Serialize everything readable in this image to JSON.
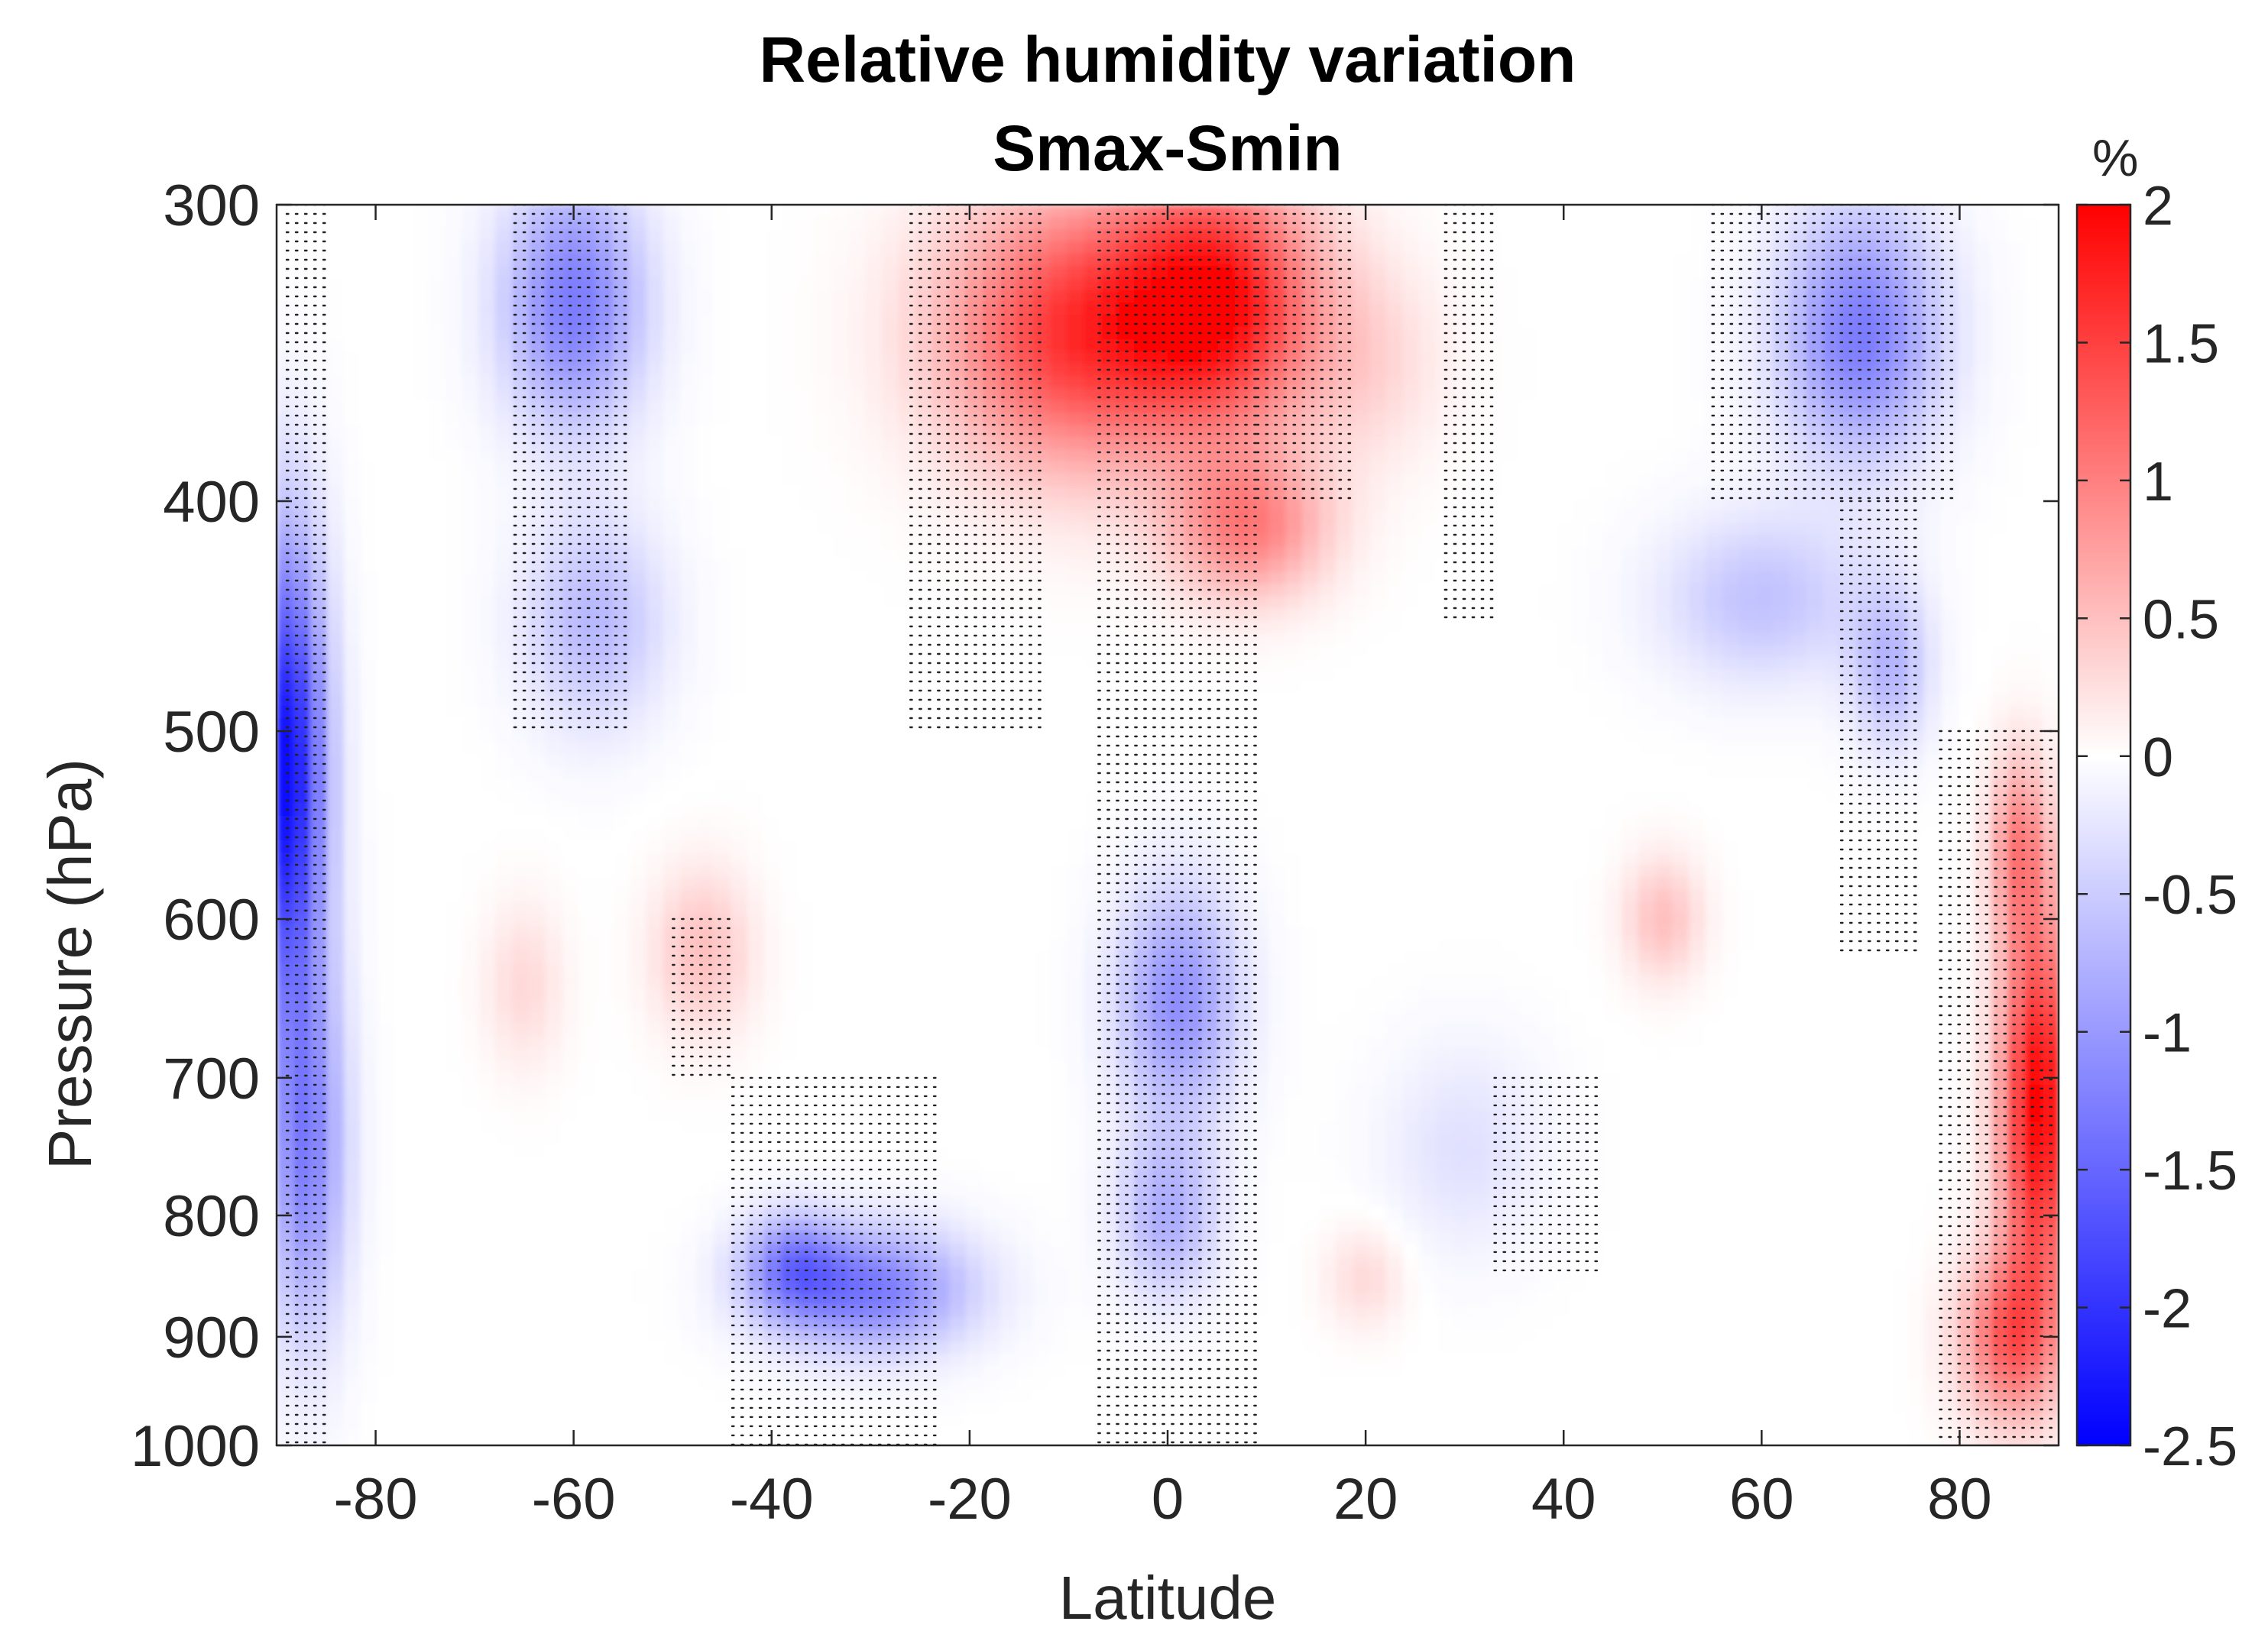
{
  "chart_data": {
    "type": "heatmap",
    "title": "Relative humidity variation",
    "subtitle": "Smax-Smin",
    "xlabel": "Latitude",
    "ylabel": "Pressure (hPa)",
    "xlim": [
      -90,
      90
    ],
    "ylim": [
      1000,
      300
    ],
    "y_scale": "log",
    "x_ticks": [
      -80,
      -60,
      -40,
      -20,
      0,
      20,
      40,
      60,
      80
    ],
    "y_ticks": [
      300,
      400,
      500,
      600,
      700,
      800,
      900,
      1000
    ],
    "colorbar": {
      "label": "%",
      "limits": [
        -2.5,
        2
      ],
      "ticks": [
        2,
        1.5,
        1,
        0.5,
        0,
        -0.5,
        -1,
        -1.5,
        -2,
        -2.5
      ],
      "tick_labels": [
        "2",
        "1.5",
        "1",
        "0.5",
        "0",
        "-0.5",
        "-1",
        "-1.5",
        "-2",
        "-2.5"
      ],
      "colors": {
        "low": "#0000ff",
        "mid": "#ffffff",
        "high": "#ff0000"
      }
    },
    "features": [
      {
        "lat": -89,
        "p": 520,
        "value": -2.4,
        "lat_width": 4,
        "p_log_width": 0.22
      },
      {
        "lat": -87,
        "p": 750,
        "value": -1.2,
        "lat_width": 4,
        "p_log_width": 0.18
      },
      {
        "lat": -60,
        "p": 330,
        "value": -1.3,
        "lat_width": 7,
        "p_log_width": 0.12
      },
      {
        "lat": -58,
        "p": 450,
        "value": -0.7,
        "lat_width": 7,
        "p_log_width": 0.1
      },
      {
        "lat": -30,
        "p": 860,
        "value": -1.3,
        "lat_width": 10,
        "p_log_width": 0.06
      },
      {
        "lat": -38,
        "p": 840,
        "value": -1.0,
        "lat_width": 5,
        "p_log_width": 0.05
      },
      {
        "lat": -47,
        "p": 620,
        "value": 0.5,
        "lat_width": 5,
        "p_log_width": 0.08
      },
      {
        "lat": -65,
        "p": 640,
        "value": 0.3,
        "lat_width": 4,
        "p_log_width": 0.08
      },
      {
        "lat": -10,
        "p": 340,
        "value": 1.5,
        "lat_width": 13,
        "p_log_width": 0.13
      },
      {
        "lat": 5,
        "p": 330,
        "value": 1.8,
        "lat_width": 10,
        "p_log_width": 0.12
      },
      {
        "lat": 8,
        "p": 410,
        "value": 1.0,
        "lat_width": 8,
        "p_log_width": 0.07
      },
      {
        "lat": 1,
        "p": 650,
        "value": -1.1,
        "lat_width": 6,
        "p_log_width": 0.11
      },
      {
        "lat": 0,
        "p": 800,
        "value": -0.8,
        "lat_width": 5,
        "p_log_width": 0.08
      },
      {
        "lat": 20,
        "p": 350,
        "value": 0.3,
        "lat_width": 8,
        "p_log_width": 0.1
      },
      {
        "lat": 20,
        "p": 850,
        "value": 0.3,
        "lat_width": 4,
        "p_log_width": 0.05
      },
      {
        "lat": 70,
        "p": 340,
        "value": -1.3,
        "lat_width": 8,
        "p_log_width": 0.12
      },
      {
        "lat": 60,
        "p": 440,
        "value": -0.6,
        "lat_width": 10,
        "p_log_width": 0.08
      },
      {
        "lat": 73,
        "p": 470,
        "value": -0.7,
        "lat_width": 4,
        "p_log_width": 0.08
      },
      {
        "lat": 50,
        "p": 600,
        "value": 0.5,
        "lat_width": 4,
        "p_log_width": 0.06
      },
      {
        "lat": 88,
        "p": 720,
        "value": 2.0,
        "lat_width": 4,
        "p_log_width": 0.18
      },
      {
        "lat": 85,
        "p": 900,
        "value": 1.2,
        "lat_width": 5,
        "p_log_width": 0.08
      },
      {
        "lat": 86,
        "p": 560,
        "value": 0.9,
        "lat_width": 3,
        "p_log_width": 0.09
      },
      {
        "lat": 30,
        "p": 750,
        "value": -0.3,
        "lat_width": 8,
        "p_log_width": 0.1
      }
    ],
    "significance_regions": [
      {
        "lat_range": [
          -89,
          -85
        ],
        "p_range": [
          300,
          1000
        ]
      },
      {
        "lat_range": [
          -66,
          -54
        ],
        "p_range": [
          300,
          500
        ]
      },
      {
        "lat_range": [
          -50,
          -44
        ],
        "p_range": [
          600,
          700
        ]
      },
      {
        "lat_range": [
          -44,
          -23
        ],
        "p_range": [
          700,
          1000
        ]
      },
      {
        "lat_range": [
          -26,
          -13
        ],
        "p_range": [
          300,
          500
        ]
      },
      {
        "lat_range": [
          -7,
          9
        ],
        "p_range": [
          300,
          1000
        ]
      },
      {
        "lat_range": [
          9,
          19
        ],
        "p_range": [
          300,
          400
        ]
      },
      {
        "lat_range": [
          28,
          33
        ],
        "p_range": [
          300,
          450
        ]
      },
      {
        "lat_range": [
          33,
          44
        ],
        "p_range": [
          700,
          850
        ]
      },
      {
        "lat_range": [
          55,
          80
        ],
        "p_range": [
          300,
          400
        ]
      },
      {
        "lat_range": [
          68,
          76
        ],
        "p_range": [
          400,
          620
        ]
      },
      {
        "lat_range": [
          78,
          90
        ],
        "p_range": [
          500,
          1000
        ]
      }
    ]
  }
}
